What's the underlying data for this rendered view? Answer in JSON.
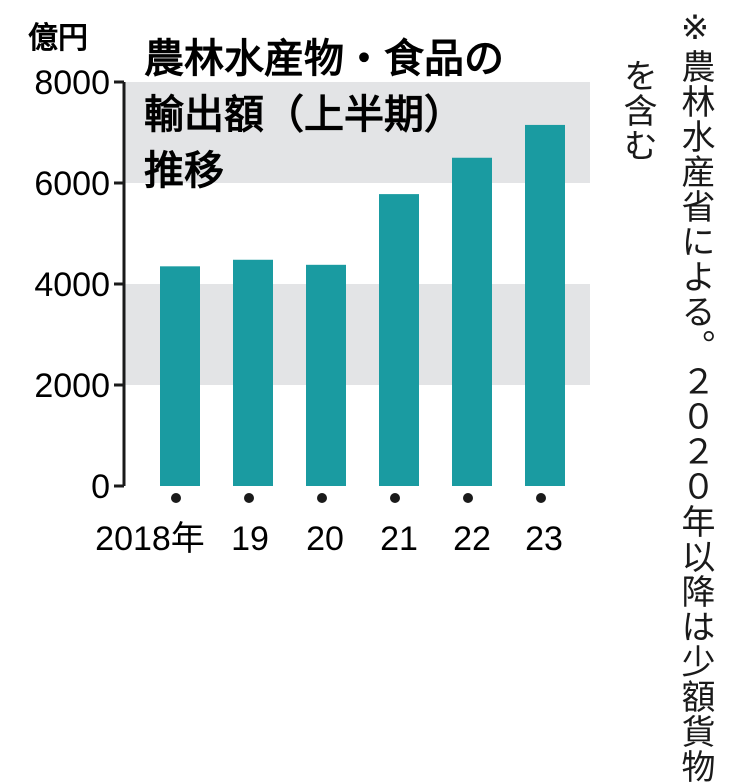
{
  "chart_data": {
    "type": "bar",
    "title_lines": [
      "農林水産物・食品の",
      "輸出額（上半期）",
      "推移"
    ],
    "unit_label": "億円",
    "categories": [
      "2018年",
      "19",
      "20",
      "21",
      "22",
      "23"
    ],
    "values": [
      4350,
      4480,
      4380,
      5780,
      6500,
      7150
    ],
    "yticks": [
      "0",
      "2000",
      "4000",
      "6000",
      "8000"
    ],
    "ylim": [
      0,
      8000
    ],
    "bar_color": "#1a9ba1",
    "band_color": "#e3e4e6",
    "note_lines": [
      "※農林水産省による。２０２０年以降は少額貨物",
      "を含む"
    ]
  }
}
